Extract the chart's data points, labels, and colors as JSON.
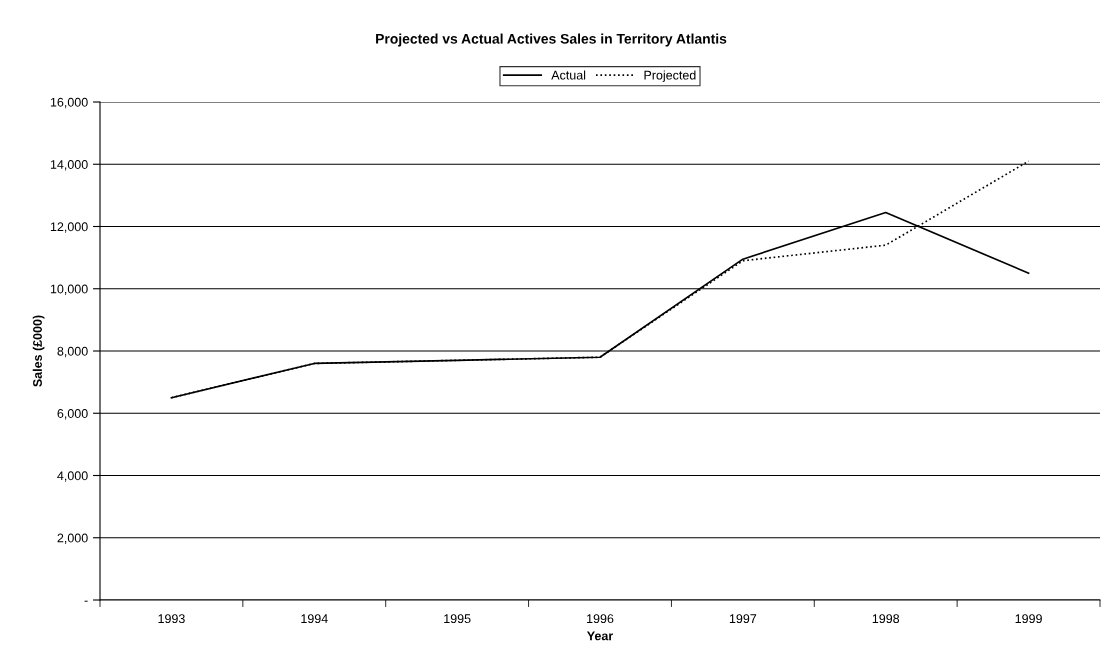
{
  "chart_data": {
    "type": "line",
    "title": "Projected vs Actual Actives Sales in Territory Atlantis",
    "xlabel": "Year",
    "ylabel": "Sales (£000)",
    "categories": [
      "1993",
      "1994",
      "1995",
      "1996",
      "1997",
      "1998",
      "1999"
    ],
    "series": [
      {
        "name": "Actual",
        "color": "#000000",
        "line_style": "solid",
        "values": [
          6500,
          7600,
          7700,
          7800,
          10950,
          12450,
          10500
        ]
      },
      {
        "name": "Projected",
        "color": "#000000",
        "line_style": "dotted",
        "values": [
          6500,
          7600,
          7700,
          7800,
          10900,
          11400,
          14100
        ]
      }
    ],
    "ylim": [
      0,
      16000
    ],
    "yticks": [
      {
        "value": 0,
        "label": "-"
      },
      {
        "value": 2000,
        "label": "2,000"
      },
      {
        "value": 4000,
        "label": "4,000"
      },
      {
        "value": 6000,
        "label": "6,000"
      },
      {
        "value": 8000,
        "label": "8,000"
      },
      {
        "value": 10000,
        "label": "10,000"
      },
      {
        "value": 12000,
        "label": "12,000"
      },
      {
        "value": 14000,
        "label": "14,000"
      },
      {
        "value": 16000,
        "label": "16,000"
      }
    ],
    "grid": "y",
    "legend": "top",
    "marker": "none"
  }
}
